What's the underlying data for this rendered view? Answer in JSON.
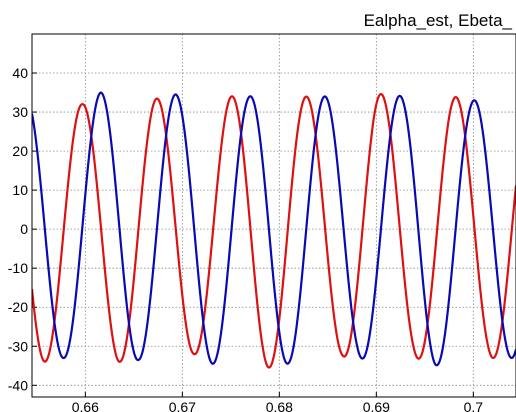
{
  "chart_data": {
    "type": "line",
    "title": "Ealpha_est, Ebeta_",
    "xlabel": "",
    "ylabel": "",
    "xlim": [
      0.6545,
      0.7044
    ],
    "ylim": [
      -43,
      50
    ],
    "x_ticks": [
      0.66,
      0.67,
      0.68,
      0.69,
      0.7
    ],
    "x_tick_labels": [
      "0.66",
      "0.67",
      "0.68",
      "0.69",
      "0.7"
    ],
    "y_ticks": [
      -40,
      -30,
      -20,
      -10,
      0,
      10,
      20,
      30,
      40
    ],
    "y_tick_labels": [
      "-40",
      "-30",
      "-20",
      "-10",
      "0",
      "10",
      "20",
      "30",
      "40"
    ],
    "grid": true,
    "series": [
      {
        "color": "#dd1111",
        "amplitude": 34,
        "period": 0.0077,
        "reference_peak_x": 0.6597,
        "peaks": [
          {
            "x": 0.6597,
            "y": 32
          },
          {
            "x": 0.6673,
            "y": 33.5
          },
          {
            "x": 0.675,
            "y": 34
          },
          {
            "x": 0.6827,
            "y": 34
          },
          {
            "x": 0.6897,
            "y": 35
          },
          {
            "x": 0.6975,
            "y": 34
          }
        ],
        "troughs": [
          {
            "x": 0.6557,
            "y": -34
          },
          {
            "x": 0.6633,
            "y": -34
          },
          {
            "x": 0.6712,
            "y": -32
          },
          {
            "x": 0.6788,
            "y": -35.5
          },
          {
            "x": 0.6865,
            "y": -32.5
          },
          {
            "x": 0.6937,
            "y": -33
          },
          {
            "x": 0.7015,
            "y": -33
          }
        ]
      },
      {
        "color": "#0a0ab4",
        "amplitude": 34,
        "period": 0.0077,
        "reference_peak_x": 0.6616,
        "peaks": [
          {
            "x": 0.6547,
            "y": 33.5
          },
          {
            "x": 0.6616,
            "y": 35
          },
          {
            "x": 0.6692,
            "y": 34.5
          },
          {
            "x": 0.6767,
            "y": 34
          },
          {
            "x": 0.6847,
            "y": 34
          },
          {
            "x": 0.6918,
            "y": 34
          },
          {
            "x": 0.6995,
            "y": 33
          }
        ],
        "troughs": [
          {
            "x": 0.6578,
            "y": -33
          },
          {
            "x": 0.6655,
            "y": -33.5
          },
          {
            "x": 0.673,
            "y": -34.5
          },
          {
            "x": 0.6805,
            "y": -34.5
          },
          {
            "x": 0.688,
            "y": -33
          },
          {
            "x": 0.696,
            "y": -35
          },
          {
            "x": 0.7037,
            "y": -33
          }
        ]
      }
    ]
  }
}
